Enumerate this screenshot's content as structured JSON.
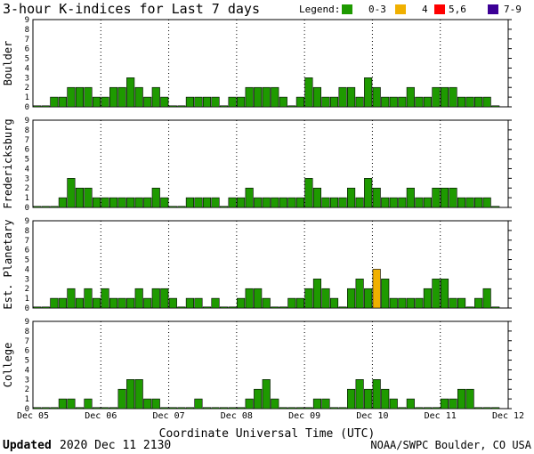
{
  "chart_data": {
    "type": "bar",
    "title": "3-hour K-indices for Last 7 days",
    "legend": {
      "label": "Legend:",
      "items": [
        {
          "label": "0-3",
          "color": "#1e9a00"
        },
        {
          "label": "4",
          "color": "#f0b000"
        },
        {
          "label": "5,6",
          "color": "#ff0000"
        },
        {
          "label": "7-9",
          "color": "#3c0096"
        }
      ]
    },
    "xlabel": "Coordinate Universal Time (UTC)",
    "x_ticks": [
      "Dec 05",
      "Dec 06",
      "Dec 07",
      "Dec 08",
      "Dec 09",
      "Dec 10",
      "Dec 11",
      "Dec 12"
    ],
    "ylim": [
      0,
      9
    ],
    "y_ticks": [
      "0",
      "1",
      "2",
      "3",
      "4",
      "5",
      "6",
      "7",
      "8",
      "9"
    ],
    "series": [
      {
        "name": "Boulder",
        "values": [
          0,
          0,
          1,
          1,
          2,
          2,
          2,
          1,
          1,
          2,
          2,
          3,
          2,
          1,
          2,
          1,
          0,
          0,
          1,
          1,
          1,
          1,
          0,
          1,
          1,
          2,
          2,
          2,
          2,
          1,
          0,
          1,
          3,
          2,
          1,
          1,
          2,
          2,
          1,
          3,
          2,
          1,
          1,
          1,
          2,
          1,
          1,
          2,
          2,
          2,
          1,
          1,
          1,
          1,
          0
        ]
      },
      {
        "name": "Fredericksburg",
        "values": [
          0,
          0,
          0,
          1,
          3,
          2,
          2,
          1,
          1,
          1,
          1,
          1,
          1,
          1,
          2,
          1,
          0,
          0,
          1,
          1,
          1,
          1,
          0,
          1,
          1,
          2,
          1,
          1,
          1,
          1,
          1,
          1,
          3,
          2,
          1,
          1,
          1,
          2,
          1,
          3,
          2,
          1,
          1,
          1,
          2,
          1,
          1,
          2,
          2,
          2,
          1,
          1,
          1,
          1,
          0
        ]
      },
      {
        "name": "Est. Planetary",
        "values": [
          0,
          0,
          1,
          1,
          2,
          1,
          2,
          1,
          2,
          1,
          1,
          1,
          2,
          1,
          2,
          2,
          1,
          0,
          1,
          1,
          0,
          1,
          0,
          0,
          1,
          2,
          2,
          1,
          0,
          0,
          1,
          1,
          2,
          3,
          2,
          1,
          0,
          2,
          3,
          2,
          4,
          3,
          1,
          1,
          1,
          1,
          2,
          3,
          3,
          1,
          1,
          0,
          1,
          2,
          0
        ]
      },
      {
        "name": "College",
        "values": [
          0,
          0,
          0,
          1,
          1,
          0,
          1,
          0,
          0,
          0,
          2,
          3,
          3,
          1,
          1,
          0,
          0,
          0,
          0,
          1,
          0,
          0,
          0,
          0,
          0,
          1,
          2,
          3,
          1,
          0,
          0,
          0,
          0,
          1,
          1,
          0,
          0,
          2,
          3,
          2,
          3,
          2,
          1,
          0,
          1,
          0,
          0,
          0,
          1,
          1,
          2,
          2,
          0,
          0,
          0
        ]
      }
    ]
  },
  "footer": {
    "updated_label": "Updated",
    "updated_value": "2020 Dec 11 2130",
    "source": "NOAA/SWPC Boulder, CO USA"
  }
}
